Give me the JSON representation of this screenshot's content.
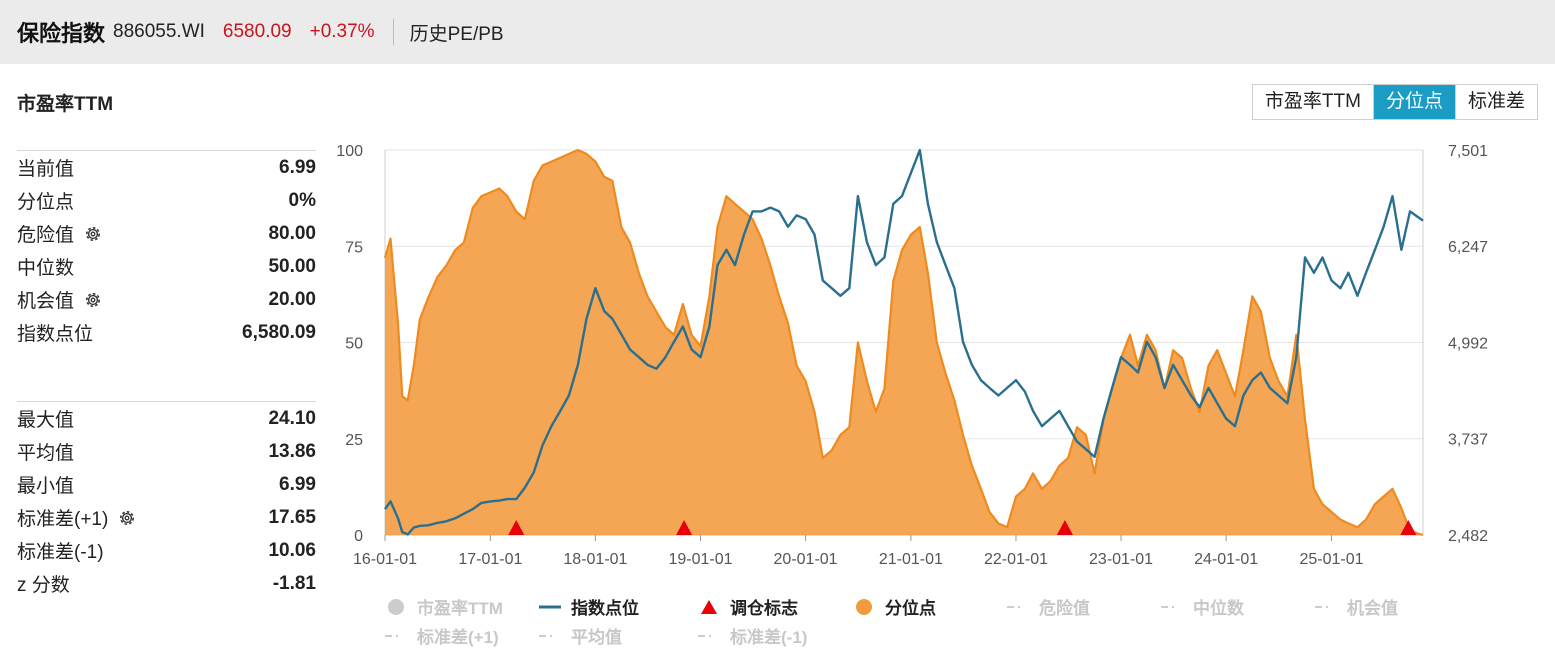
{
  "header": {
    "title": "保险指数",
    "code": "886055.WI",
    "price": "6580.09",
    "change": "+0.37%",
    "link": "历史PE/PB"
  },
  "section_title": "市盈率TTM",
  "tabs": [
    {
      "label": "市盈率TTM",
      "active": false
    },
    {
      "label": "分位点",
      "active": true
    },
    {
      "label": "标准差",
      "active": false
    }
  ],
  "stats_top": [
    {
      "label": "当前值",
      "value": "6.99",
      "gear": false
    },
    {
      "label": "分位点",
      "value": "0%",
      "gear": false
    },
    {
      "label": "危险值",
      "value": "80.00",
      "gear": true
    },
    {
      "label": "中位数",
      "value": "50.00",
      "gear": false
    },
    {
      "label": "机会值",
      "value": "20.00",
      "gear": true
    },
    {
      "label": "指数点位",
      "value": "6,580.09",
      "gear": false
    }
  ],
  "stats_bottom": [
    {
      "label": "最大值",
      "value": "24.10",
      "gear": false
    },
    {
      "label": "平均值",
      "value": "13.86",
      "gear": false
    },
    {
      "label": "最小值",
      "value": "6.99",
      "gear": false
    },
    {
      "label": "标准差(+1)",
      "value": "17.65",
      "gear": true
    },
    {
      "label": "标准差(-1)",
      "value": "10.06",
      "gear": false
    },
    {
      "label": "z 分数",
      "value": "-1.81",
      "gear": false
    }
  ],
  "legend": [
    {
      "label": "市盈率TTM",
      "symbol": "dot",
      "color": "#cccccc",
      "active": false
    },
    {
      "label": "指数点位",
      "symbol": "line",
      "color": "#2a6f8f",
      "active": true
    },
    {
      "label": "调仓标志",
      "symbol": "triangle",
      "color": "#e8000b",
      "active": true
    },
    {
      "label": "分位点",
      "symbol": "dot",
      "color": "#f39a3c",
      "active": true
    },
    {
      "label": "危险值",
      "symbol": "dash",
      "color": "#cccccc",
      "active": false
    },
    {
      "label": "中位数",
      "symbol": "dash",
      "color": "#cccccc",
      "active": false
    },
    {
      "label": "机会值",
      "symbol": "dash",
      "color": "#cccccc",
      "active": false
    },
    {
      "label": "标准差(+1)",
      "symbol": "dash",
      "color": "#cccccc",
      "active": false
    },
    {
      "label": "平均值",
      "symbol": "dash",
      "color": "#cccccc",
      "active": false
    },
    {
      "label": "标准差(-1)",
      "symbol": "dash",
      "color": "#cccccc",
      "active": false
    }
  ],
  "chart_data": {
    "type": "area",
    "x_start": "2016-01-01",
    "x_end": "2025-11-15",
    "x_ticks": [
      "16-01-01",
      "17-01-01",
      "18-01-01",
      "19-01-01",
      "20-01-01",
      "21-01-01",
      "22-01-01",
      "23-01-01",
      "24-01-01",
      "25-01-01"
    ],
    "y_left": {
      "min": 0,
      "max": 100,
      "ticks": [
        "0",
        "25",
        "50",
        "75",
        "100"
      ]
    },
    "y_right": {
      "min": 2482,
      "max": 7501,
      "ticks": [
        "2,482",
        "3,737",
        "4,992",
        "6,247",
        "7,501"
      ]
    },
    "grid": true,
    "colors": {
      "percentile": "#f39a3c",
      "index": "#2a6f8f",
      "marker": "#e8000b"
    },
    "series": [
      {
        "name": "分位点",
        "axis": "left",
        "points": [
          [
            "2016-01-01",
            72
          ],
          [
            "2016-01-20",
            77
          ],
          [
            "2016-02-15",
            55
          ],
          [
            "2016-03-01",
            36
          ],
          [
            "2016-03-20",
            35
          ],
          [
            "2016-04-10",
            44
          ],
          [
            "2016-05-01",
            56
          ],
          [
            "2016-06-01",
            62
          ],
          [
            "2016-07-01",
            67
          ],
          [
            "2016-08-01",
            70
          ],
          [
            "2016-09-01",
            74
          ],
          [
            "2016-10-01",
            76
          ],
          [
            "2016-11-01",
            85
          ],
          [
            "2016-12-01",
            88
          ],
          [
            "2017-01-01",
            89
          ],
          [
            "2017-02-01",
            90
          ],
          [
            "2017-03-01",
            88
          ],
          [
            "2017-04-01",
            84
          ],
          [
            "2017-05-01",
            82
          ],
          [
            "2017-06-01",
            92
          ],
          [
            "2017-07-01",
            96
          ],
          [
            "2017-08-01",
            97
          ],
          [
            "2017-09-01",
            98
          ],
          [
            "2017-10-01",
            99
          ],
          [
            "2017-11-01",
            100
          ],
          [
            "2017-12-01",
            99
          ],
          [
            "2018-01-01",
            97
          ],
          [
            "2018-02-01",
            93
          ],
          [
            "2018-03-01",
            92
          ],
          [
            "2018-04-01",
            80
          ],
          [
            "2018-05-01",
            76
          ],
          [
            "2018-06-01",
            68
          ],
          [
            "2018-07-01",
            62
          ],
          [
            "2018-08-01",
            58
          ],
          [
            "2018-09-01",
            54
          ],
          [
            "2018-10-01",
            52
          ],
          [
            "2018-11-01",
            60
          ],
          [
            "2018-12-01",
            52
          ],
          [
            "2019-01-01",
            49
          ],
          [
            "2019-02-01",
            62
          ],
          [
            "2019-03-01",
            80
          ],
          [
            "2019-04-01",
            88
          ],
          [
            "2019-05-01",
            86
          ],
          [
            "2019-06-01",
            84
          ],
          [
            "2019-07-01",
            82
          ],
          [
            "2019-08-01",
            77
          ],
          [
            "2019-09-01",
            70
          ],
          [
            "2019-10-01",
            62
          ],
          [
            "2019-11-01",
            55
          ],
          [
            "2019-12-01",
            44
          ],
          [
            "2020-01-01",
            40
          ],
          [
            "2020-02-01",
            32
          ],
          [
            "2020-03-01",
            20
          ],
          [
            "2020-04-01",
            22
          ],
          [
            "2020-05-01",
            26
          ],
          [
            "2020-06-01",
            28
          ],
          [
            "2020-07-01",
            50
          ],
          [
            "2020-08-01",
            40
          ],
          [
            "2020-09-01",
            32
          ],
          [
            "2020-10-01",
            38
          ],
          [
            "2020-11-01",
            66
          ],
          [
            "2020-12-01",
            74
          ],
          [
            "2021-01-01",
            78
          ],
          [
            "2021-02-01",
            80
          ],
          [
            "2021-03-01",
            68
          ],
          [
            "2021-04-01",
            50
          ],
          [
            "2021-05-01",
            42
          ],
          [
            "2021-06-01",
            35
          ],
          [
            "2021-07-01",
            26
          ],
          [
            "2021-08-01",
            18
          ],
          [
            "2021-09-01",
            12
          ],
          [
            "2021-10-01",
            6
          ],
          [
            "2021-11-01",
            3
          ],
          [
            "2021-12-01",
            2
          ],
          [
            "2022-01-01",
            10
          ],
          [
            "2022-02-01",
            12
          ],
          [
            "2022-03-01",
            16
          ],
          [
            "2022-04-01",
            12
          ],
          [
            "2022-05-01",
            14
          ],
          [
            "2022-06-01",
            18
          ],
          [
            "2022-07-01",
            20
          ],
          [
            "2022-08-01",
            28
          ],
          [
            "2022-09-01",
            26
          ],
          [
            "2022-10-01",
            16
          ],
          [
            "2022-11-01",
            30
          ],
          [
            "2022-12-01",
            38
          ],
          [
            "2023-01-01",
            46
          ],
          [
            "2023-02-01",
            52
          ],
          [
            "2023-03-01",
            44
          ],
          [
            "2023-04-01",
            52
          ],
          [
            "2023-05-01",
            48
          ],
          [
            "2023-06-01",
            38
          ],
          [
            "2023-07-01",
            48
          ],
          [
            "2023-08-01",
            46
          ],
          [
            "2023-09-01",
            38
          ],
          [
            "2023-10-01",
            32
          ],
          [
            "2023-11-01",
            44
          ],
          [
            "2023-12-01",
            48
          ],
          [
            "2024-01-01",
            42
          ],
          [
            "2024-02-01",
            36
          ],
          [
            "2024-03-01",
            48
          ],
          [
            "2024-04-01",
            62
          ],
          [
            "2024-05-01",
            58
          ],
          [
            "2024-06-01",
            46
          ],
          [
            "2024-07-01",
            40
          ],
          [
            "2024-08-01",
            36
          ],
          [
            "2024-09-01",
            52
          ],
          [
            "2024-10-01",
            30
          ],
          [
            "2024-11-01",
            12
          ],
          [
            "2024-12-01",
            8
          ],
          [
            "2025-01-01",
            6
          ],
          [
            "2025-02-01",
            4
          ],
          [
            "2025-03-01",
            3
          ],
          [
            "2025-04-01",
            2
          ],
          [
            "2025-05-01",
            4
          ],
          [
            "2025-06-01",
            8
          ],
          [
            "2025-07-01",
            10
          ],
          [
            "2025-08-01",
            12
          ],
          [
            "2025-09-01",
            7
          ],
          [
            "2025-10-01",
            1
          ],
          [
            "2025-11-15",
            0
          ]
        ]
      },
      {
        "name": "指数点位",
        "axis": "right",
        "points": [
          [
            "2016-01-01",
            2820
          ],
          [
            "2016-01-20",
            2920
          ],
          [
            "2016-02-15",
            2700
          ],
          [
            "2016-03-01",
            2520
          ],
          [
            "2016-03-20",
            2490
          ],
          [
            "2016-04-10",
            2580
          ],
          [
            "2016-05-01",
            2600
          ],
          [
            "2016-06-01",
            2610
          ],
          [
            "2016-07-01",
            2640
          ],
          [
            "2016-08-01",
            2660
          ],
          [
            "2016-09-01",
            2700
          ],
          [
            "2016-10-01",
            2760
          ],
          [
            "2016-11-01",
            2820
          ],
          [
            "2016-12-01",
            2900
          ],
          [
            "2017-01-01",
            2920
          ],
          [
            "2017-02-01",
            2930
          ],
          [
            "2017-03-01",
            2950
          ],
          [
            "2017-04-01",
            2950
          ],
          [
            "2017-05-01",
            3100
          ],
          [
            "2017-06-01",
            3300
          ],
          [
            "2017-07-01",
            3650
          ],
          [
            "2017-08-01",
            3900
          ],
          [
            "2017-09-01",
            4100
          ],
          [
            "2017-10-01",
            4300
          ],
          [
            "2017-11-01",
            4700
          ],
          [
            "2017-12-01",
            5300
          ],
          [
            "2018-01-01",
            5700
          ],
          [
            "2018-02-01",
            5400
          ],
          [
            "2018-03-01",
            5300
          ],
          [
            "2018-04-01",
            5100
          ],
          [
            "2018-05-01",
            4900
          ],
          [
            "2018-06-01",
            4800
          ],
          [
            "2018-07-01",
            4700
          ],
          [
            "2018-08-01",
            4650
          ],
          [
            "2018-09-01",
            4800
          ],
          [
            "2018-10-01",
            5000
          ],
          [
            "2018-11-01",
            5200
          ],
          [
            "2018-12-01",
            4900
          ],
          [
            "2019-01-01",
            4800
          ],
          [
            "2019-02-01",
            5200
          ],
          [
            "2019-03-01",
            6000
          ],
          [
            "2019-04-01",
            6200
          ],
          [
            "2019-05-01",
            6000
          ],
          [
            "2019-06-01",
            6400
          ],
          [
            "2019-07-01",
            6700
          ],
          [
            "2019-08-01",
            6700
          ],
          [
            "2019-09-01",
            6750
          ],
          [
            "2019-10-01",
            6700
          ],
          [
            "2019-11-01",
            6500
          ],
          [
            "2019-12-01",
            6650
          ],
          [
            "2020-01-01",
            6600
          ],
          [
            "2020-02-01",
            6400
          ],
          [
            "2020-03-01",
            5800
          ],
          [
            "2020-04-01",
            5700
          ],
          [
            "2020-05-01",
            5600
          ],
          [
            "2020-06-01",
            5700
          ],
          [
            "2020-07-01",
            6900
          ],
          [
            "2020-08-01",
            6300
          ],
          [
            "2020-09-01",
            6000
          ],
          [
            "2020-10-01",
            6100
          ],
          [
            "2020-11-01",
            6800
          ],
          [
            "2020-12-01",
            6900
          ],
          [
            "2021-01-01",
            7200
          ],
          [
            "2021-02-01",
            7500
          ],
          [
            "2021-03-01",
            6800
          ],
          [
            "2021-04-01",
            6300
          ],
          [
            "2021-05-01",
            6000
          ],
          [
            "2021-06-01",
            5700
          ],
          [
            "2021-07-01",
            5000
          ],
          [
            "2021-08-01",
            4700
          ],
          [
            "2021-09-01",
            4500
          ],
          [
            "2021-10-01",
            4400
          ],
          [
            "2021-11-01",
            4300
          ],
          [
            "2021-12-01",
            4400
          ],
          [
            "2022-01-01",
            4500
          ],
          [
            "2022-02-01",
            4350
          ],
          [
            "2022-03-01",
            4100
          ],
          [
            "2022-04-01",
            3900
          ],
          [
            "2022-05-01",
            4000
          ],
          [
            "2022-06-01",
            4100
          ],
          [
            "2022-07-01",
            3900
          ],
          [
            "2022-08-01",
            3700
          ],
          [
            "2022-09-01",
            3600
          ],
          [
            "2022-10-01",
            3500
          ],
          [
            "2022-11-01",
            4000
          ],
          [
            "2022-12-01",
            4400
          ],
          [
            "2023-01-01",
            4800
          ],
          [
            "2023-02-01",
            4700
          ],
          [
            "2023-03-01",
            4600
          ],
          [
            "2023-04-01",
            5000
          ],
          [
            "2023-05-01",
            4800
          ],
          [
            "2023-06-01",
            4400
          ],
          [
            "2023-07-01",
            4700
          ],
          [
            "2023-08-01",
            4500
          ],
          [
            "2023-09-01",
            4300
          ],
          [
            "2023-10-01",
            4150
          ],
          [
            "2023-11-01",
            4400
          ],
          [
            "2023-12-01",
            4200
          ],
          [
            "2024-01-01",
            4000
          ],
          [
            "2024-02-01",
            3900
          ],
          [
            "2024-03-01",
            4300
          ],
          [
            "2024-04-01",
            4500
          ],
          [
            "2024-05-01",
            4600
          ],
          [
            "2024-06-01",
            4400
          ],
          [
            "2024-07-01",
            4300
          ],
          [
            "2024-08-01",
            4200
          ],
          [
            "2024-09-01",
            4800
          ],
          [
            "2024-10-01",
            6100
          ],
          [
            "2024-11-01",
            5900
          ],
          [
            "2024-12-01",
            6100
          ],
          [
            "2025-01-01",
            5800
          ],
          [
            "2025-02-01",
            5700
          ],
          [
            "2025-03-01",
            5900
          ],
          [
            "2025-04-01",
            5600
          ],
          [
            "2025-05-01",
            5900
          ],
          [
            "2025-06-01",
            6200
          ],
          [
            "2025-07-01",
            6500
          ],
          [
            "2025-08-01",
            6900
          ],
          [
            "2025-09-01",
            6200
          ],
          [
            "2025-10-01",
            6700
          ],
          [
            "2025-11-15",
            6580
          ]
        ]
      }
    ],
    "markers": {
      "name": "调仓标志",
      "dates": [
        "2017-04-01",
        "2018-11-05",
        "2022-06-20",
        "2025-09-25"
      ],
      "value": 0
    }
  }
}
